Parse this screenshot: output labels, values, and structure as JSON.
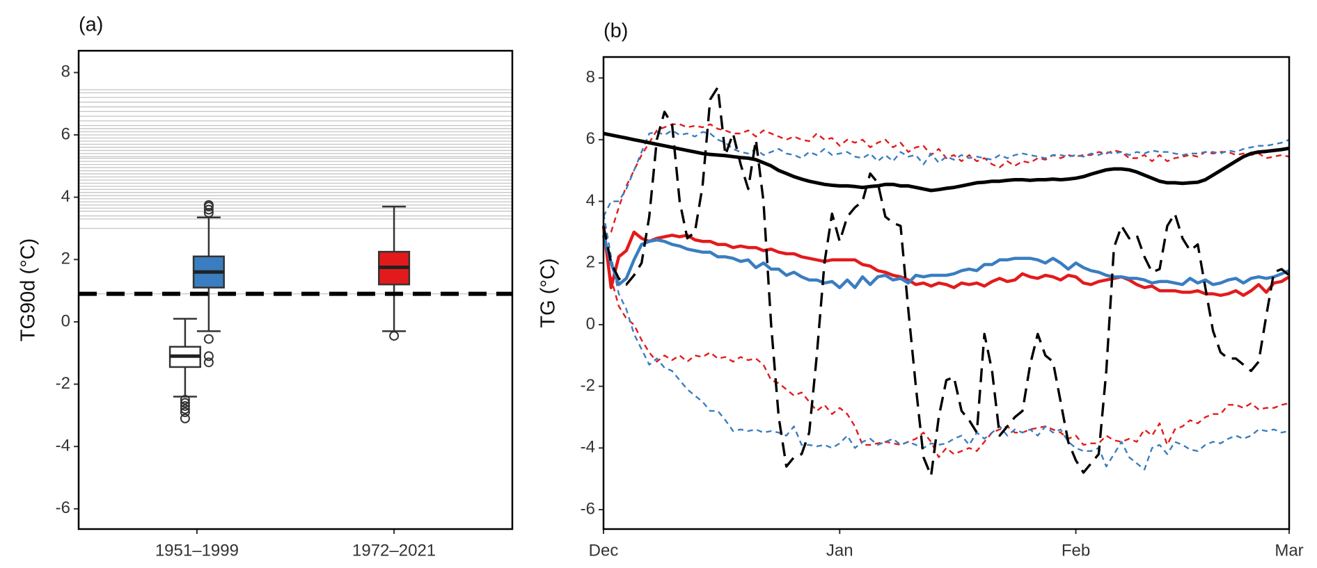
{
  "chart_data": [
    {
      "type": "box",
      "title": "(a)",
      "y_label": "TG90d (°C)",
      "categories": [
        "1951–1999",
        "1972–2021"
      ],
      "ylim": [
        -6.65,
        8.7
      ],
      "yticks": [
        -6,
        -4,
        -2,
        0,
        2,
        4,
        6,
        8
      ],
      "reference_lines": [
        3.0,
        3.3,
        3.4,
        3.55,
        3.65,
        3.75,
        3.85,
        3.95,
        4.05,
        4.15,
        4.25,
        4.35,
        4.45,
        4.55,
        4.65,
        4.75,
        4.85,
        4.95,
        5.05,
        5.15,
        5.25,
        5.3,
        5.4,
        5.5,
        5.6,
        5.7,
        5.8,
        5.9,
        6.0,
        6.1,
        6.2,
        6.3,
        6.45,
        6.6,
        6.75,
        6.9,
        7.05,
        7.2,
        7.35,
        7.45
      ],
      "reference_color": "#c4c4c4",
      "threshold": 0.9,
      "series": [
        {
          "color": "#ffffff",
          "values": [
            {
              "low": -2.4,
              "q1": -1.45,
              "median": -1.1,
              "q3": -0.8,
              "high": 0.1,
              "outliers": [
                -2.5,
                -2.6,
                -2.7,
                -2.8,
                -2.9,
                -3.1
              ]
            },
            null
          ]
        },
        {
          "color": "#3a7dc0",
          "values": [
            {
              "low": -0.3,
              "q1": 1.1,
              "median": 1.6,
              "q3": 2.1,
              "high": 3.35,
              "outliers": [
                3.5,
                3.6,
                3.7,
                3.75,
                -0.55,
                -1.1,
                -1.3
              ]
            },
            null
          ]
        },
        {
          "color": "#e31a1c",
          "values": [
            null,
            {
              "low": -0.3,
              "q1": 1.2,
              "median": 1.75,
              "q3": 2.25,
              "high": 3.7,
              "outliers": [
                -0.45
              ]
            }
          ]
        }
      ]
    },
    {
      "type": "line",
      "title": "(b)",
      "y_label": "TG (°C)",
      "xlim": [
        0,
        90
      ],
      "xticks": [
        {
          "value": 0,
          "label": "Dec"
        },
        {
          "value": 31,
          "label": "Jan"
        },
        {
          "value": 62,
          "label": "Feb"
        },
        {
          "value": 90,
          "label": "Mar"
        }
      ],
      "ylim": [
        -6.63,
        8.68
      ],
      "yticks": [
        -6,
        -4,
        -2,
        0,
        2,
        4,
        6,
        8
      ],
      "x": [
        0,
        1,
        2,
        3,
        4,
        5,
        6,
        7,
        8,
        9,
        10,
        11,
        12,
        13,
        14,
        15,
        16,
        17,
        18,
        19,
        20,
        21,
        22,
        23,
        24,
        25,
        26,
        27,
        28,
        29,
        30,
        31,
        32,
        33,
        34,
        35,
        36,
        37,
        38,
        39,
        40,
        41,
        42,
        43,
        44,
        45,
        46,
        47,
        48,
        49,
        50,
        51,
        52,
        53,
        54,
        55,
        56,
        57,
        58,
        59,
        60,
        61,
        62,
        63,
        64,
        65,
        66,
        67,
        68,
        69,
        70,
        71,
        72,
        73,
        74,
        75,
        76,
        77,
        78,
        79,
        80,
        81,
        82,
        83,
        84,
        85,
        86,
        87,
        88,
        89,
        90
      ],
      "series": [
        {
          "color": "#e31a1c",
          "style": "dashed",
          "values": [
            2.8,
            3.0,
            3.8,
            4.5,
            5.0,
            5.5,
            5.9,
            6.3,
            6.4,
            6.5,
            6.5,
            6.4,
            6.45,
            6.4,
            6.5,
            6.35,
            6.3,
            6.2,
            6.2,
            6.3,
            6.1,
            6.3,
            6.2,
            6.1,
            6.0,
            6.1,
            6.0,
            5.95,
            6.2,
            6.0,
            6.05,
            5.8,
            6.0,
            5.9,
            6.0,
            5.75,
            5.9,
            6.0,
            5.75,
            5.9,
            5.6,
            5.75,
            5.8,
            5.5,
            5.7,
            5.4,
            5.5,
            5.3,
            5.5,
            5.3,
            5.4,
            5.2,
            5.1,
            5.3,
            5.15,
            5.3,
            5.25,
            5.4,
            5.35,
            5.5,
            5.4,
            5.5,
            5.45,
            5.5,
            5.5,
            5.6,
            5.55,
            5.65,
            5.6,
            5.4,
            5.4,
            5.5,
            5.3,
            5.5,
            5.3,
            5.4,
            5.45,
            5.5,
            5.45,
            5.6,
            5.55,
            5.6,
            5.6,
            5.5,
            5.55,
            5.5,
            5.55,
            5.4,
            5.45,
            5.5,
            5.45
          ]
        },
        {
          "color": "#3a7dc0",
          "style": "dashed",
          "values": [
            3.5,
            4.0,
            4.0,
            4.4,
            5.0,
            5.6,
            6.2,
            6.25,
            6.15,
            6.3,
            6.15,
            6.2,
            6.1,
            6.25,
            6.2,
            6.0,
            5.9,
            5.7,
            5.6,
            5.55,
            5.7,
            5.5,
            5.6,
            5.7,
            5.55,
            5.5,
            5.4,
            5.6,
            5.5,
            5.7,
            5.5,
            5.55,
            5.6,
            5.45,
            5.4,
            5.55,
            5.3,
            5.5,
            5.3,
            5.6,
            5.45,
            5.5,
            5.2,
            5.55,
            5.25,
            5.45,
            5.35,
            5.5,
            5.4,
            5.45,
            5.4,
            5.35,
            5.5,
            5.4,
            5.5,
            5.55,
            5.5,
            5.45,
            5.4,
            5.5,
            5.5,
            5.45,
            5.5,
            5.45,
            5.55,
            5.5,
            5.6,
            5.55,
            5.6,
            5.5,
            5.6,
            5.55,
            5.65,
            5.6,
            5.6,
            5.55,
            5.5,
            5.55,
            5.55,
            5.6,
            5.6,
            5.55,
            5.65,
            5.6,
            5.7,
            5.75,
            5.8,
            5.8,
            5.85,
            5.9,
            6.0
          ]
        },
        {
          "color": "#e31a1c",
          "style": "dashed",
          "values": [
            2.8,
            1.5,
            0.6,
            0.2,
            0.0,
            -0.5,
            -0.9,
            -1.2,
            -1.0,
            -1.15,
            -1.0,
            -1.2,
            -1.0,
            -1.05,
            -0.9,
            -1.1,
            -1.05,
            -1.2,
            -1.05,
            -1.15,
            -1.1,
            -1.3,
            -1.8,
            -1.9,
            -2.1,
            -2.3,
            -2.2,
            -2.5,
            -2.8,
            -2.6,
            -2.9,
            -2.7,
            -2.9,
            -3.3,
            -3.9,
            -3.9,
            -3.85,
            -3.8,
            -3.85,
            -3.9,
            -3.8,
            -3.7,
            -3.5,
            -3.8,
            -4.3,
            -4.0,
            -4.2,
            -4.1,
            -4.0,
            -4.1,
            -3.8,
            -3.5,
            -3.4,
            -3.3,
            -3.5,
            -3.5,
            -3.4,
            -3.35,
            -3.3,
            -3.4,
            -3.5,
            -3.7,
            -3.6,
            -3.9,
            -3.85,
            -3.85,
            -3.6,
            -3.75,
            -3.8,
            -3.7,
            -3.8,
            -3.4,
            -3.6,
            -3.2,
            -3.9,
            -3.4,
            -3.3,
            -3.1,
            -3.2,
            -3.0,
            -2.9,
            -2.9,
            -2.6,
            -2.6,
            -2.7,
            -2.55,
            -2.75,
            -2.7,
            -2.7,
            -2.6,
            -2.55
          ]
        },
        {
          "color": "#3a7dc0",
          "style": "dashed",
          "values": [
            3.6,
            2.2,
            1.0,
            0.5,
            -0.3,
            -0.8,
            -1.3,
            -1.1,
            -1.4,
            -1.5,
            -1.8,
            -2.1,
            -2.3,
            -2.5,
            -2.8,
            -2.8,
            -3.1,
            -3.45,
            -3.4,
            -3.45,
            -3.4,
            -3.5,
            -3.45,
            -3.5,
            -3.6,
            -3.3,
            -3.9,
            -3.9,
            -3.95,
            -3.9,
            -4.0,
            -3.85,
            -3.6,
            -4.0,
            -3.8,
            -3.7,
            -3.9,
            -3.8,
            -3.7,
            -3.9,
            -3.8,
            -3.9,
            -4.0,
            -3.85,
            -3.9,
            -3.85,
            -3.7,
            -3.6,
            -3.9,
            -3.5,
            -3.7,
            -3.5,
            -3.3,
            -3.6,
            -3.4,
            -3.5,
            -3.4,
            -3.6,
            -3.3,
            -3.5,
            -3.4,
            -3.8,
            -4.0,
            -4.1,
            -4.1,
            -4.0,
            -4.6,
            -4.2,
            -3.8,
            -4.3,
            -4.5,
            -4.7,
            -4.0,
            -3.9,
            -4.2,
            -3.8,
            -3.9,
            -4.05,
            -4.1,
            -3.9,
            -3.8,
            -3.85,
            -3.7,
            -3.6,
            -3.7,
            -3.6,
            -3.4,
            -3.45,
            -3.4,
            -3.5,
            -3.45
          ]
        },
        {
          "color": "#e31a1c",
          "style": "solid",
          "values": [
            3.2,
            1.2,
            2.2,
            2.4,
            3.0,
            2.8,
            2.7,
            2.8,
            2.85,
            2.9,
            2.85,
            2.9,
            2.75,
            2.7,
            2.7,
            2.6,
            2.6,
            2.5,
            2.55,
            2.5,
            2.5,
            2.4,
            2.45,
            2.35,
            2.3,
            2.3,
            2.2,
            2.15,
            2.1,
            2.05,
            2.1,
            2.1,
            2.1,
            2.1,
            1.95,
            1.9,
            1.75,
            1.7,
            1.6,
            1.55,
            1.45,
            1.3,
            1.35,
            1.25,
            1.35,
            1.3,
            1.2,
            1.35,
            1.3,
            1.35,
            1.25,
            1.4,
            1.5,
            1.4,
            1.45,
            1.65,
            1.55,
            1.5,
            1.6,
            1.55,
            1.45,
            1.6,
            1.55,
            1.35,
            1.3,
            1.4,
            1.45,
            1.5,
            1.55,
            1.45,
            1.3,
            1.2,
            1.25,
            1.1,
            1.1,
            1.1,
            1.05,
            1.05,
            1.1,
            1.0,
            1.0,
            0.95,
            1.0,
            1.1,
            0.95,
            1.1,
            1.3,
            1.05,
            1.35,
            1.4,
            1.55
          ]
        },
        {
          "color": "#3a7dc0",
          "style": "solid",
          "values": [
            2.9,
            2.0,
            1.3,
            1.5,
            2.1,
            2.6,
            2.7,
            2.75,
            2.7,
            2.6,
            2.55,
            2.45,
            2.4,
            2.35,
            2.35,
            2.2,
            2.2,
            2.15,
            2.05,
            2.1,
            1.85,
            2.0,
            1.8,
            1.8,
            1.6,
            1.7,
            1.55,
            1.45,
            1.45,
            1.35,
            1.4,
            1.2,
            1.45,
            1.2,
            1.55,
            1.3,
            1.55,
            1.6,
            1.45,
            1.5,
            1.35,
            1.6,
            1.55,
            1.6,
            1.6,
            1.6,
            1.65,
            1.75,
            1.8,
            1.75,
            1.95,
            1.95,
            2.1,
            2.1,
            2.15,
            2.15,
            2.15,
            2.1,
            2.0,
            2.15,
            2.0,
            1.8,
            2.0,
            1.85,
            1.75,
            1.7,
            1.6,
            1.55,
            1.55,
            1.5,
            1.5,
            1.45,
            1.35,
            1.4,
            1.4,
            1.35,
            1.3,
            1.5,
            1.35,
            1.45,
            1.3,
            1.35,
            1.45,
            1.5,
            1.35,
            1.5,
            1.55,
            1.5,
            1.55,
            1.65,
            1.75
          ]
        },
        {
          "color": "#000000",
          "style": "longdash",
          "values": [
            3.2,
            2.0,
            1.5,
            1.3,
            1.6,
            2.0,
            3.5,
            6.0,
            6.9,
            6.5,
            4.0,
            2.8,
            3.0,
            4.5,
            7.3,
            7.7,
            5.5,
            6.2,
            5.2,
            4.4,
            6.0,
            4.0,
            0.0,
            -3.0,
            -4.6,
            -4.3,
            -4.2,
            -3.5,
            -1.0,
            2.0,
            3.6,
            2.7,
            3.5,
            3.8,
            4.0,
            4.9,
            4.6,
            3.5,
            3.3,
            3.2,
            0.5,
            -2.0,
            -4.3,
            -4.9,
            -3.0,
            -1.8,
            -1.7,
            -2.8,
            -3.1,
            -3.5,
            -0.3,
            -1.5,
            -3.6,
            -3.3,
            -3.0,
            -2.8,
            -1.3,
            -0.3,
            -1.0,
            -1.2,
            -2.5,
            -3.8,
            -4.4,
            -4.8,
            -4.5,
            -4.2,
            -1.5,
            2.5,
            3.2,
            2.8,
            2.9,
            2.2,
            1.7,
            1.8,
            3.2,
            3.6,
            2.8,
            2.4,
            2.6,
            1.2,
            -0.2,
            -0.9,
            -1.1,
            -1.1,
            -1.3,
            -1.5,
            -1.2,
            0.3,
            1.7,
            1.8,
            1.6
          ]
        },
        {
          "color": "#000000",
          "style": "solid",
          "values": [
            6.2,
            6.15,
            6.1,
            6.05,
            6.0,
            5.95,
            5.9,
            5.85,
            5.8,
            5.75,
            5.7,
            5.65,
            5.6,
            5.55,
            5.52,
            5.5,
            5.48,
            5.45,
            5.42,
            5.4,
            5.35,
            5.25,
            5.15,
            5.0,
            4.9,
            4.8,
            4.72,
            4.65,
            4.6,
            4.55,
            4.52,
            4.5,
            4.5,
            4.48,
            4.45,
            4.48,
            4.5,
            4.55,
            4.55,
            4.5,
            4.5,
            4.45,
            4.4,
            4.35,
            4.38,
            4.42,
            4.45,
            4.5,
            4.55,
            4.6,
            4.62,
            4.65,
            4.65,
            4.68,
            4.7,
            4.7,
            4.68,
            4.7,
            4.7,
            4.72,
            4.7,
            4.72,
            4.75,
            4.8,
            4.88,
            4.95,
            5.02,
            5.05,
            5.05,
            5.02,
            4.95,
            4.85,
            4.75,
            4.65,
            4.6,
            4.6,
            4.58,
            4.6,
            4.62,
            4.7,
            4.85,
            5.0,
            5.15,
            5.3,
            5.45,
            5.55,
            5.6,
            5.62,
            5.65,
            5.68,
            5.72
          ]
        }
      ]
    }
  ]
}
